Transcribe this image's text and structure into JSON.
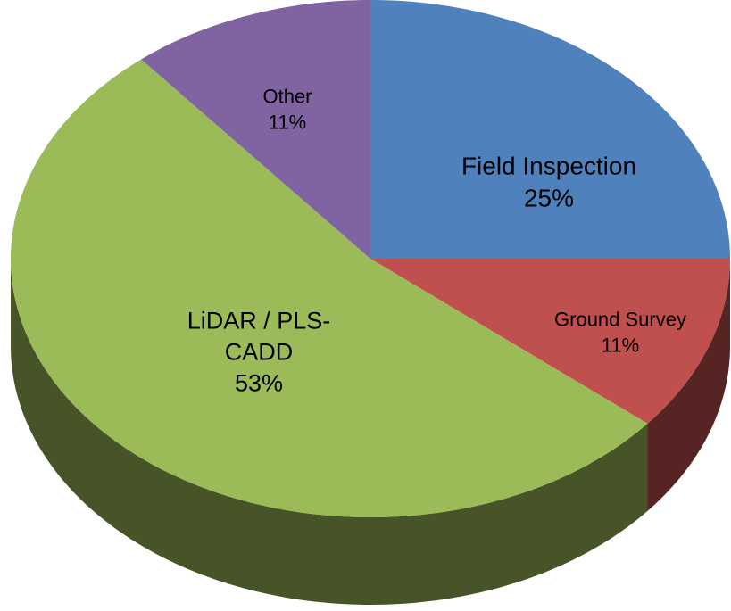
{
  "chart_data": {
    "type": "pie3d",
    "categories": [
      "Field Inspection",
      "Ground Survey",
      "LiDAR / PLS-CADD",
      "Other"
    ],
    "values": [
      25,
      11,
      53,
      11
    ],
    "value_labels": [
      "25%",
      "11%",
      "53%",
      "11%"
    ],
    "colors": [
      "#4f81bd",
      "#c0504d",
      "#9bbb59",
      "#8064a2"
    ]
  }
}
